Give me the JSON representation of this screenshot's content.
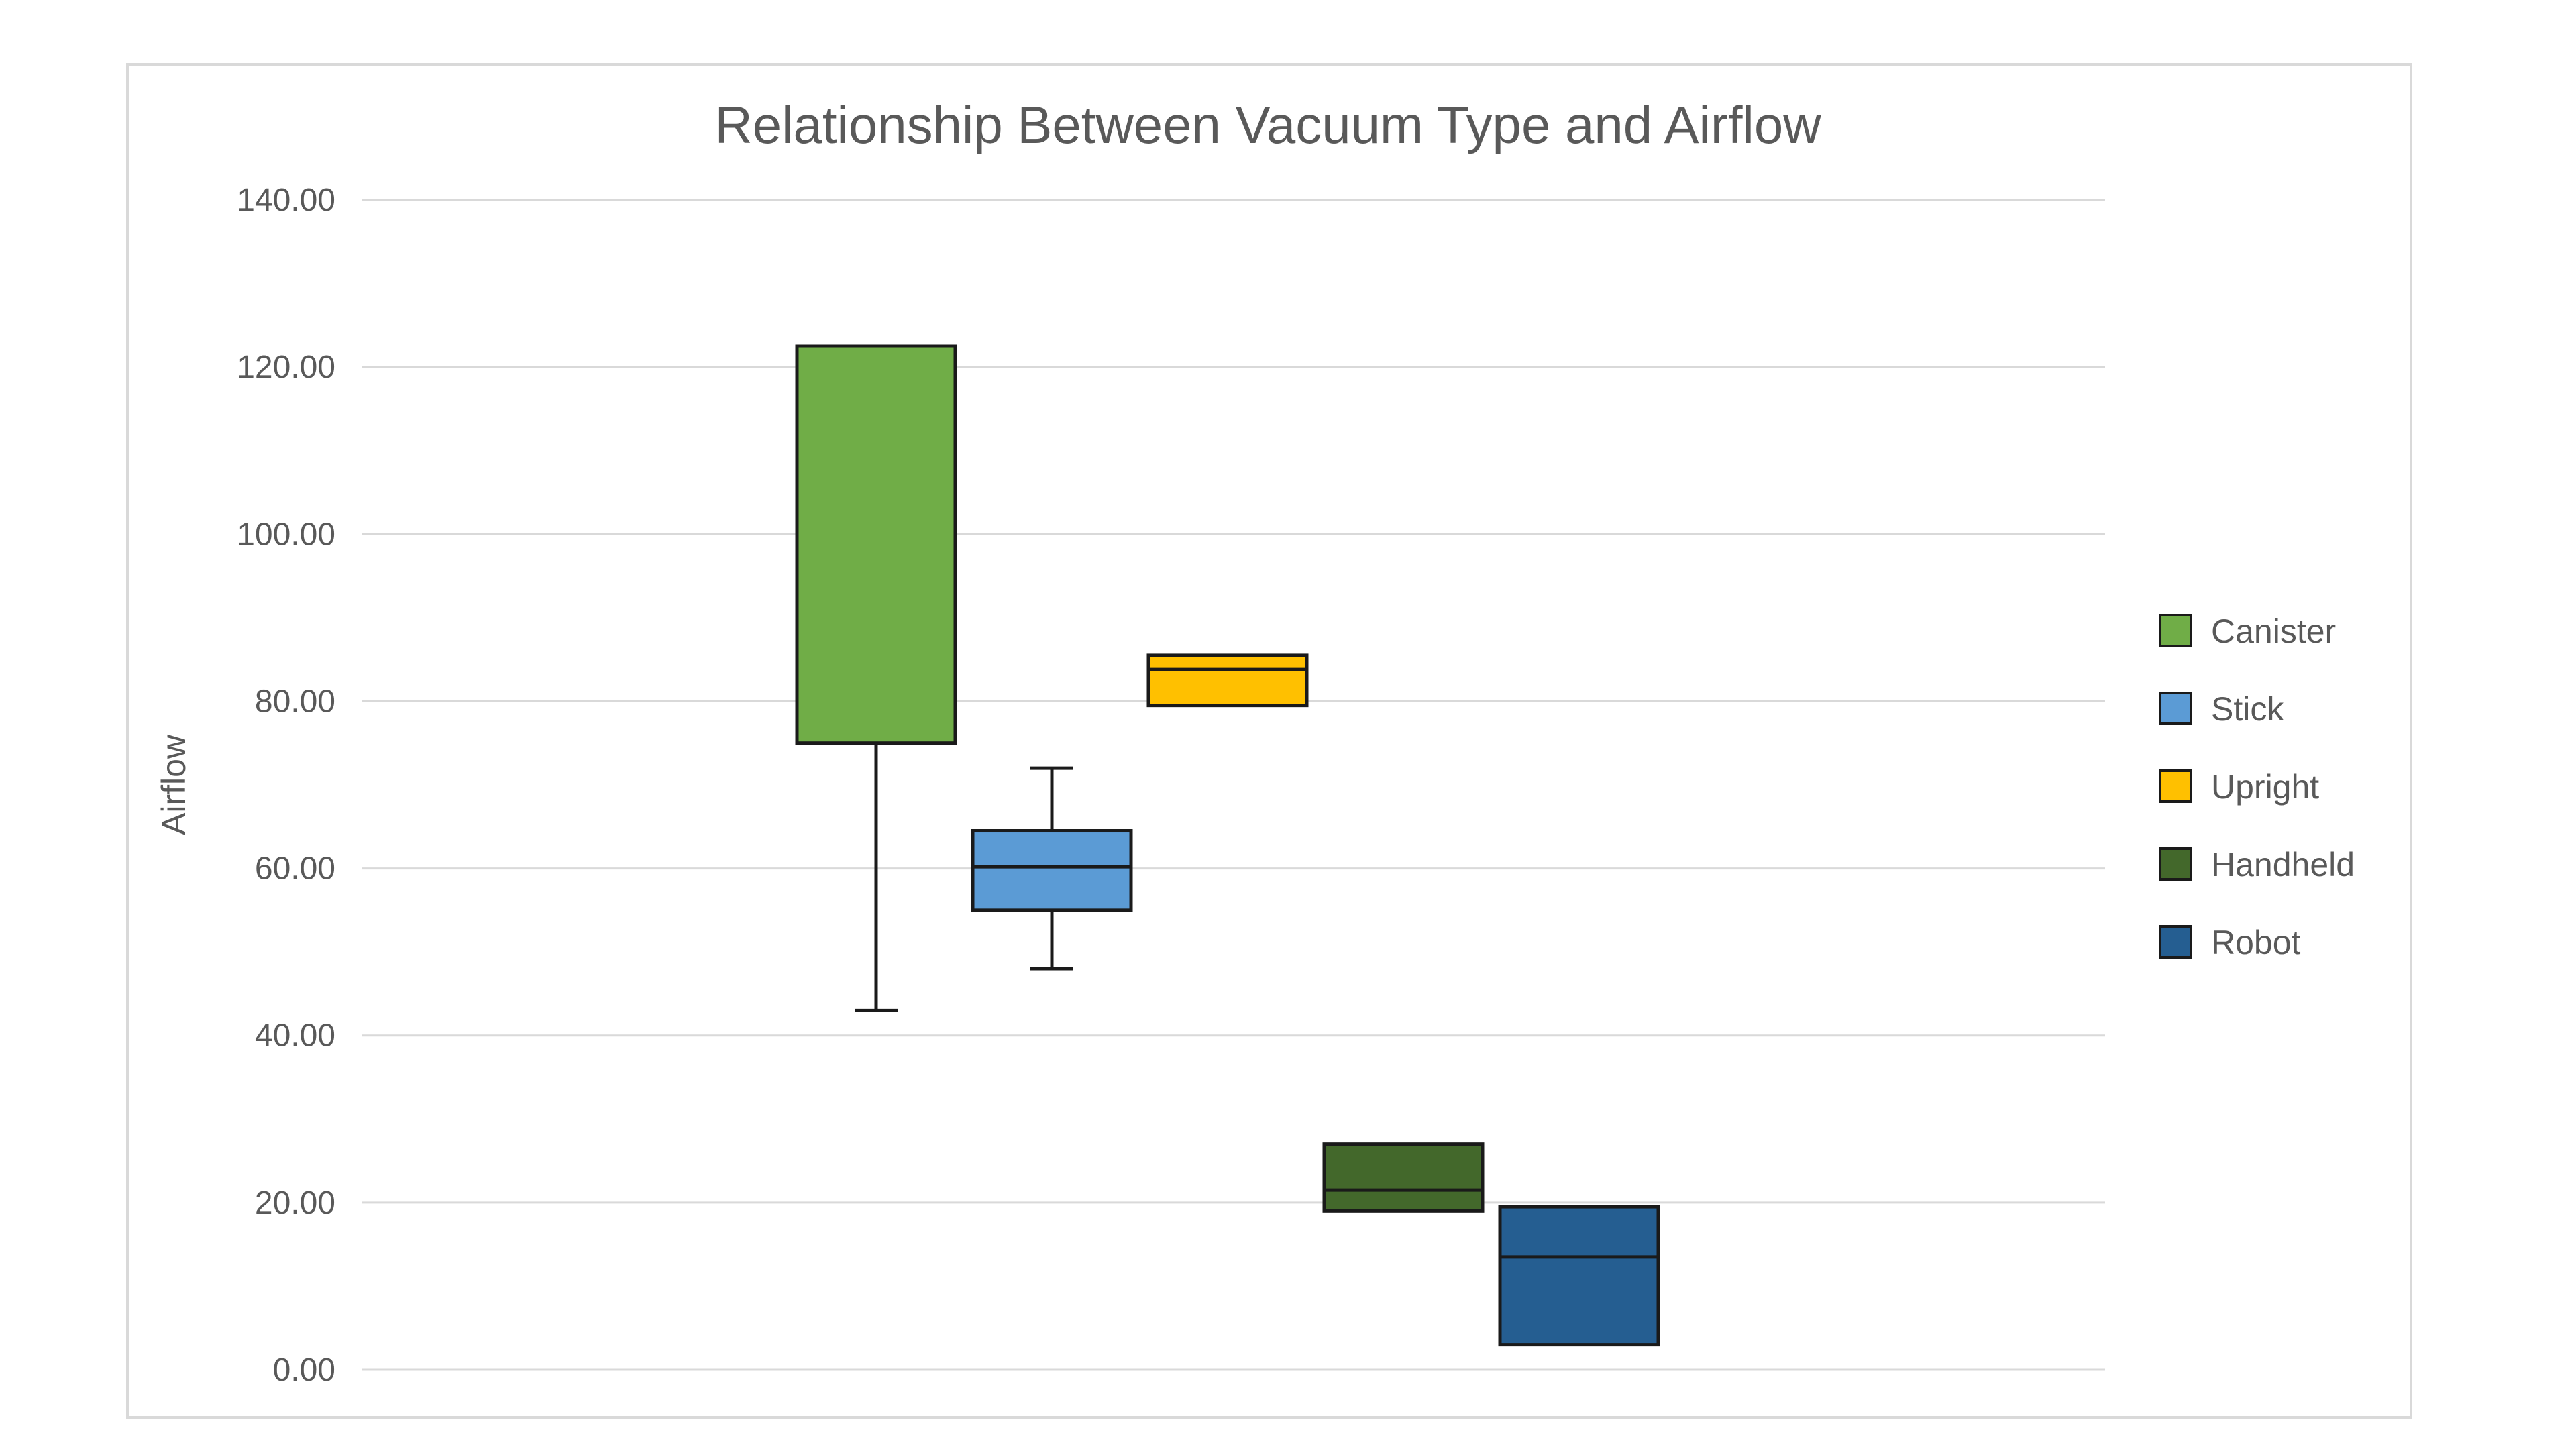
{
  "chart_data": {
    "type": "box",
    "title": "Relationship Between Vacuum Type and Airflow",
    "xlabel": "",
    "ylabel": "Airflow",
    "ylim": [
      0,
      140
    ],
    "yticks": [
      "0.00",
      "20.00",
      "40.00",
      "60.00",
      "80.00",
      "100.00",
      "120.00",
      "140.00"
    ],
    "grid": true,
    "legend_position": "right",
    "series": [
      {
        "name": "Canister",
        "color": "#70AD47",
        "min": 43,
        "q1": 75,
        "median": 122.5,
        "q3": 122.5,
        "max": 122.5
      },
      {
        "name": "Stick",
        "color": "#5B9BD5",
        "min": 48,
        "q1": 55,
        "median": 60.2,
        "q3": 64.5,
        "max": 72
      },
      {
        "name": "Upright",
        "color": "#FFC000",
        "min": 79.5,
        "q1": 79.5,
        "median": 83.8,
        "q3": 85.5,
        "max": 85.5
      },
      {
        "name": "Handheld",
        "color": "#43682B",
        "min": 19,
        "q1": 19,
        "median": 21.5,
        "q3": 27,
        "max": 27
      },
      {
        "name": "Robot",
        "color": "#255E91",
        "min": 3,
        "q1": 3,
        "median": 13.5,
        "q3": 19.5,
        "max": 19.5
      }
    ]
  }
}
